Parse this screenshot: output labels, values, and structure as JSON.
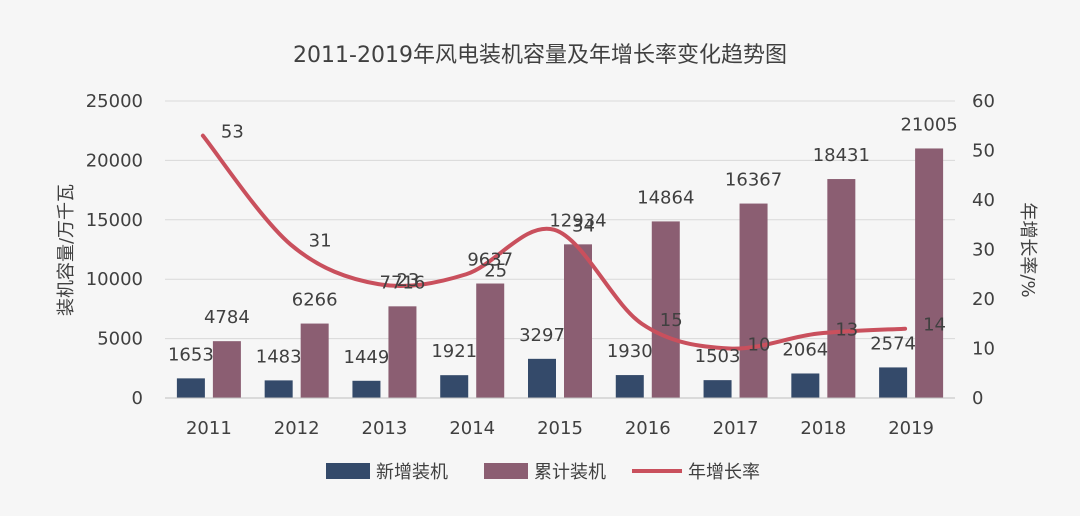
{
  "chart_data": {
    "type": "bar",
    "title": "2011-2019年风电装机容量及年增长率变化趋势图",
    "categories": [
      "2011",
      "2012",
      "2013",
      "2014",
      "2015",
      "2016",
      "2017",
      "2018",
      "2019"
    ],
    "series": [
      {
        "name": "新增装机",
        "type": "bar",
        "axis": "left",
        "color": "#344a6a",
        "values": [
          1653,
          1483,
          1449,
          1921,
          3297,
          1930,
          1503,
          2064,
          2574
        ]
      },
      {
        "name": "累计装机",
        "type": "bar",
        "axis": "left",
        "color": "#8b5e72",
        "values": [
          4784,
          6266,
          7716,
          9637,
          12934,
          14864,
          16367,
          18431,
          21005
        ]
      },
      {
        "name": "年增长率",
        "type": "line",
        "axis": "right",
        "color": "#c9505d",
        "values": [
          53,
          31,
          23,
          25,
          34,
          15,
          10,
          13,
          14
        ]
      }
    ],
    "y_left": {
      "label": "装机容量/万千瓦",
      "range": [
        0,
        25000
      ],
      "ticks": [
        "0",
        "5000",
        "10000",
        "15000",
        "20000",
        "25000"
      ]
    },
    "y_right": {
      "label": "年增长率/%",
      "range": [
        0,
        60
      ],
      "ticks": [
        "0",
        "10",
        "20",
        "30",
        "40",
        "50",
        "60"
      ]
    },
    "grid": true,
    "legend_position": "bottom"
  }
}
